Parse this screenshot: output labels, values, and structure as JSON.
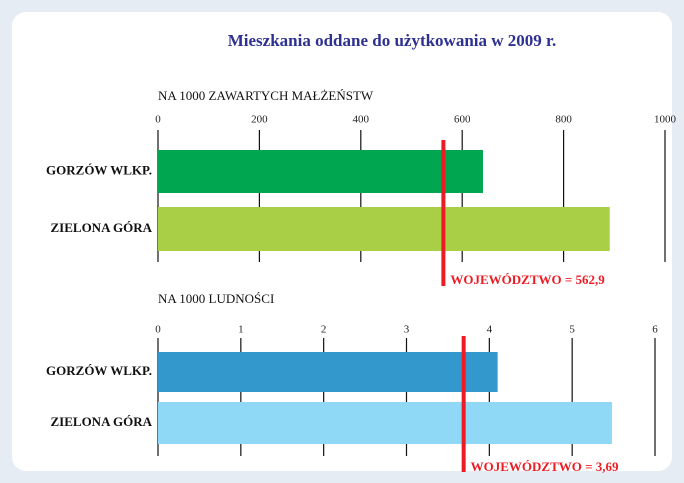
{
  "title": "Mieszkania oddane do użytkowania w 2009 r.",
  "chart_data": [
    {
      "type": "barh",
      "subtitle": "NA 1000 ZAWARTYCH  MAŁŻEŃSTW",
      "categories": [
        "GORZÓW WLKP.",
        "ZIELONA GÓRA"
      ],
      "values": [
        641,
        891
      ],
      "colors": [
        "#00a650",
        "#a8cf45"
      ],
      "xlim": [
        0,
        1000
      ],
      "xticks": [
        0,
        200,
        400,
        600,
        800,
        1000
      ],
      "grid": true,
      "reference": {
        "value": 562.9,
        "label": "WOJEWÓDZTWO = 562,9",
        "color": "#ed1c24"
      }
    },
    {
      "type": "barh",
      "subtitle": "NA 1000 LUDNOŚCI",
      "categories": [
        "GORZÓW WLKP.",
        "ZIELONA GÓRA"
      ],
      "values": [
        4.1,
        5.48
      ],
      "colors": [
        "#3399cc",
        "#8fd8f6"
      ],
      "xlim": [
        0,
        6
      ],
      "xticks": [
        0,
        1,
        2,
        3,
        4,
        5,
        6
      ],
      "grid": true,
      "reference": {
        "value": 3.69,
        "label": "WOJEWÓDZTWO = 3,69",
        "color": "#ed1c24"
      }
    }
  ]
}
